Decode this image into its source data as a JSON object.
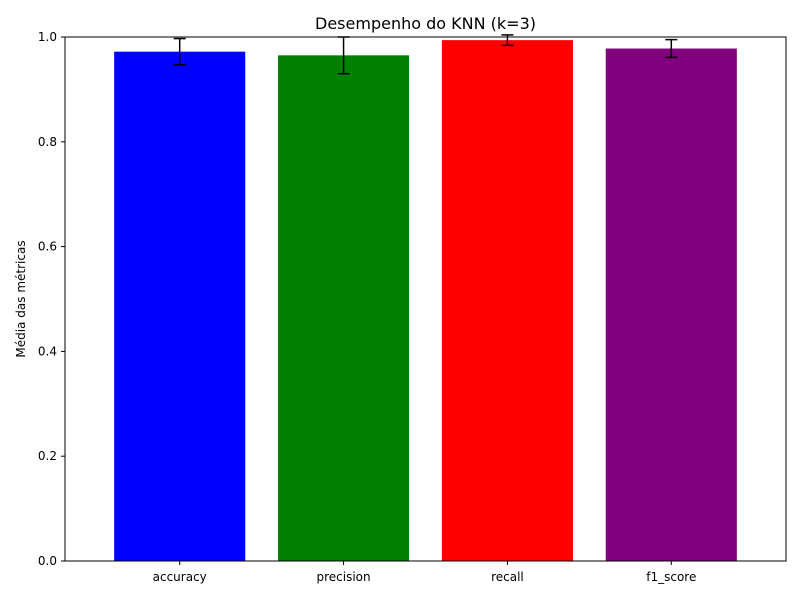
{
  "chart_data": {
    "type": "bar",
    "title": "Desempenho do KNN (k=3)",
    "xlabel": "",
    "ylabel": "Média das métricas",
    "categories": [
      "accuracy",
      "precision",
      "recall",
      "f1_score"
    ],
    "values": [
      0.972,
      0.965,
      0.994,
      0.978
    ],
    "errors": [
      0.025,
      0.035,
      0.01,
      0.017
    ],
    "colors": [
      "#0000ff",
      "#008000",
      "#ff0000",
      "#800080"
    ],
    "ylim": [
      0,
      1.0
    ],
    "yticks": [
      0.0,
      0.2,
      0.4,
      0.6,
      0.8,
      1.0
    ],
    "ytick_labels": [
      "0.0",
      "0.2",
      "0.4",
      "0.6",
      "0.8",
      "1.0"
    ],
    "grid": false,
    "legend": "none"
  }
}
